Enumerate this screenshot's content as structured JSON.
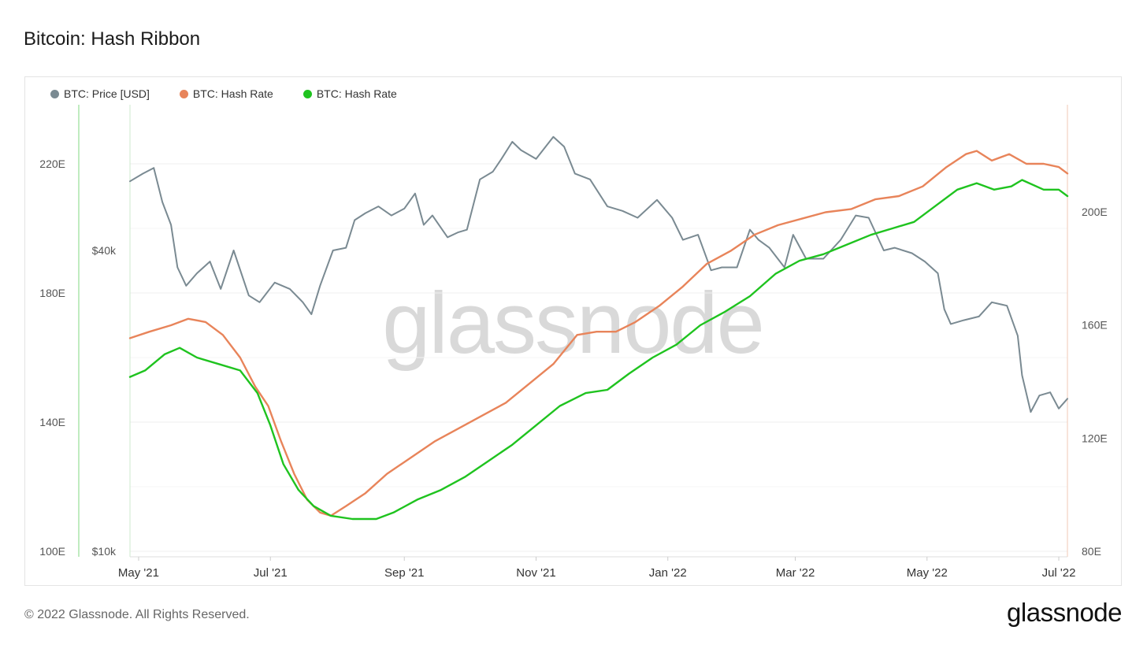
{
  "page": {
    "title": "Bitcoin: Hash Ribbon",
    "footer": "© 2022 Glassnode. All Rights Reserved.",
    "brand": "glassnode",
    "watermark": "glassnode"
  },
  "legend": [
    {
      "label": "BTC: Price [USD]",
      "color": "#7a8a92"
    },
    {
      "label": "BTC: Hash Rate",
      "color": "#e8845a"
    },
    {
      "label": "BTC: Hash Rate",
      "color": "#1fc31f"
    }
  ],
  "chart_data": {
    "type": "line",
    "title": "Bitcoin: Hash Ribbon",
    "x_tick_labels": [
      "May '21",
      "Jul '21",
      "Sep '21",
      "Nov '21",
      "Jan '22",
      "Mar '22",
      "May '22",
      "Jul '22"
    ],
    "x_tick_dates": [
      "2021-05-01",
      "2021-07-01",
      "2021-09-01",
      "2021-11-01",
      "2022-01-01",
      "2022-03-01",
      "2022-05-01",
      "2022-07-01"
    ],
    "xlim": [
      "2021-04-27",
      "2022-07-05"
    ],
    "y_left_hashrate": {
      "ticks": [
        "100E",
        "140E",
        "180E",
        "220E"
      ],
      "tick_values": [
        100,
        140,
        180,
        220
      ],
      "range": [
        100,
        220
      ]
    },
    "y_price": {
      "ticks": [
        "$10k",
        "$40k"
      ],
      "tick_values": [
        10000,
        40000
      ],
      "scale": "log",
      "range": [
        10000,
        72000
      ]
    },
    "y_right_hashrate": {
      "ticks": [
        "80E",
        "120E",
        "160E",
        "200E"
      ],
      "tick_values": [
        80,
        120,
        160,
        200
      ],
      "range": [
        80,
        240
      ]
    },
    "series": [
      {
        "name": "BTC: Price [USD]",
        "color": "#7a8a92",
        "axis": "price",
        "points": [
          [
            "2021-04-27",
            55000
          ],
          [
            "2021-05-03",
            57000
          ],
          [
            "2021-05-08",
            58500
          ],
          [
            "2021-05-12",
            50000
          ],
          [
            "2021-05-16",
            45000
          ],
          [
            "2021-05-19",
            37000
          ],
          [
            "2021-05-23",
            34000
          ],
          [
            "2021-05-28",
            36000
          ],
          [
            "2021-06-03",
            38000
          ],
          [
            "2021-06-08",
            33500
          ],
          [
            "2021-06-14",
            40000
          ],
          [
            "2021-06-21",
            32500
          ],
          [
            "2021-06-26",
            31500
          ],
          [
            "2021-07-03",
            34500
          ],
          [
            "2021-07-10",
            33500
          ],
          [
            "2021-07-16",
            31500
          ],
          [
            "2021-07-20",
            29800
          ],
          [
            "2021-07-24",
            34000
          ],
          [
            "2021-07-30",
            40000
          ],
          [
            "2021-08-05",
            40500
          ],
          [
            "2021-08-09",
            46000
          ],
          [
            "2021-08-14",
            47500
          ],
          [
            "2021-08-20",
            49000
          ],
          [
            "2021-08-26",
            47000
          ],
          [
            "2021-09-01",
            48500
          ],
          [
            "2021-09-06",
            52000
          ],
          [
            "2021-09-10",
            45000
          ],
          [
            "2021-09-14",
            47000
          ],
          [
            "2021-09-21",
            42500
          ],
          [
            "2021-09-26",
            43500
          ],
          [
            "2021-09-30",
            44000
          ],
          [
            "2021-10-06",
            55500
          ],
          [
            "2021-10-12",
            57500
          ],
          [
            "2021-10-16",
            61000
          ],
          [
            "2021-10-21",
            66000
          ],
          [
            "2021-10-25",
            63500
          ],
          [
            "2021-11-01",
            61000
          ],
          [
            "2021-11-09",
            67500
          ],
          [
            "2021-11-14",
            64500
          ],
          [
            "2021-11-19",
            57000
          ],
          [
            "2021-11-26",
            55500
          ],
          [
            "2021-12-04",
            49000
          ],
          [
            "2021-12-11",
            48000
          ],
          [
            "2021-12-18",
            46500
          ],
          [
            "2021-12-27",
            50500
          ],
          [
            "2022-01-03",
            46500
          ],
          [
            "2022-01-08",
            42000
          ],
          [
            "2022-01-15",
            43000
          ],
          [
            "2022-01-21",
            36500
          ],
          [
            "2022-01-26",
            37000
          ],
          [
            "2022-02-02",
            37000
          ],
          [
            "2022-02-08",
            44000
          ],
          [
            "2022-02-12",
            42000
          ],
          [
            "2022-02-17",
            40500
          ],
          [
            "2022-02-24",
            37000
          ],
          [
            "2022-02-28",
            43000
          ],
          [
            "2022-03-06",
            38500
          ],
          [
            "2022-03-14",
            38500
          ],
          [
            "2022-03-22",
            42000
          ],
          [
            "2022-03-29",
            47000
          ],
          [
            "2022-04-04",
            46500
          ],
          [
            "2022-04-11",
            40000
          ],
          [
            "2022-04-16",
            40500
          ],
          [
            "2022-04-24",
            39500
          ],
          [
            "2022-04-30",
            38000
          ],
          [
            "2022-05-06",
            36000
          ],
          [
            "2022-05-09",
            30500
          ],
          [
            "2022-05-12",
            28500
          ],
          [
            "2022-05-18",
            29000
          ],
          [
            "2022-05-25",
            29500
          ],
          [
            "2022-05-31",
            31500
          ],
          [
            "2022-06-07",
            31000
          ],
          [
            "2022-06-12",
            27000
          ],
          [
            "2022-06-14",
            22500
          ],
          [
            "2022-06-18",
            19000
          ],
          [
            "2022-06-22",
            20500
          ],
          [
            "2022-06-27",
            20800
          ],
          [
            "2022-07-01",
            19300
          ],
          [
            "2022-07-05",
            20200
          ]
        ]
      },
      {
        "name": "BTC: Hash Rate",
        "color": "#e8845a",
        "axis": "hashrate_left",
        "points": [
          [
            "2021-04-27",
            166
          ],
          [
            "2021-05-06",
            168
          ],
          [
            "2021-05-16",
            170
          ],
          [
            "2021-05-24",
            172
          ],
          [
            "2021-06-01",
            171
          ],
          [
            "2021-06-09",
            167
          ],
          [
            "2021-06-17",
            160
          ],
          [
            "2021-06-24",
            151
          ],
          [
            "2021-06-30",
            145
          ],
          [
            "2021-07-06",
            134
          ],
          [
            "2021-07-12",
            124
          ],
          [
            "2021-07-18",
            116
          ],
          [
            "2021-07-24",
            112
          ],
          [
            "2021-07-29",
            111
          ],
          [
            "2021-08-05",
            114
          ],
          [
            "2021-08-14",
            118
          ],
          [
            "2021-08-24",
            124
          ],
          [
            "2021-09-04",
            129
          ],
          [
            "2021-09-15",
            134
          ],
          [
            "2021-09-26",
            138
          ],
          [
            "2021-10-07",
            142
          ],
          [
            "2021-10-18",
            146
          ],
          [
            "2021-10-29",
            152
          ],
          [
            "2021-11-09",
            158
          ],
          [
            "2021-11-20",
            167
          ],
          [
            "2021-11-29",
            168
          ],
          [
            "2021-12-08",
            168
          ],
          [
            "2021-12-17",
            171
          ],
          [
            "2021-12-28",
            176
          ],
          [
            "2022-01-08",
            182
          ],
          [
            "2022-01-19",
            189
          ],
          [
            "2022-01-30",
            193
          ],
          [
            "2022-02-10",
            198
          ],
          [
            "2022-02-21",
            201
          ],
          [
            "2022-03-04",
            203
          ],
          [
            "2022-03-15",
            205
          ],
          [
            "2022-03-27",
            206
          ],
          [
            "2022-04-07",
            209
          ],
          [
            "2022-04-18",
            210
          ],
          [
            "2022-04-29",
            213
          ],
          [
            "2022-05-10",
            219
          ],
          [
            "2022-05-19",
            223
          ],
          [
            "2022-05-24",
            224
          ],
          [
            "2022-05-31",
            221
          ],
          [
            "2022-06-08",
            223
          ],
          [
            "2022-06-16",
            220
          ],
          [
            "2022-06-24",
            220
          ],
          [
            "2022-07-01",
            219
          ],
          [
            "2022-07-05",
            217
          ]
        ]
      },
      {
        "name": "BTC: Hash Rate",
        "color": "#1fc31f",
        "axis": "hashrate_left",
        "points": [
          [
            "2021-04-27",
            154
          ],
          [
            "2021-05-04",
            156
          ],
          [
            "2021-05-13",
            161
          ],
          [
            "2021-05-20",
            163
          ],
          [
            "2021-05-28",
            160
          ],
          [
            "2021-06-07",
            158
          ],
          [
            "2021-06-17",
            156
          ],
          [
            "2021-06-25",
            149
          ],
          [
            "2021-07-01",
            139
          ],
          [
            "2021-07-07",
            127
          ],
          [
            "2021-07-14",
            119
          ],
          [
            "2021-07-21",
            114
          ],
          [
            "2021-07-29",
            111
          ],
          [
            "2021-08-08",
            110
          ],
          [
            "2021-08-19",
            110
          ],
          [
            "2021-08-27",
            112
          ],
          [
            "2021-09-07",
            116
          ],
          [
            "2021-09-18",
            119
          ],
          [
            "2021-09-29",
            123
          ],
          [
            "2021-10-10",
            128
          ],
          [
            "2021-10-21",
            133
          ],
          [
            "2021-11-01",
            139
          ],
          [
            "2021-11-12",
            145
          ],
          [
            "2021-11-24",
            149
          ],
          [
            "2021-12-04",
            150
          ],
          [
            "2021-12-14",
            155
          ],
          [
            "2021-12-25",
            160
          ],
          [
            "2022-01-05",
            164
          ],
          [
            "2022-01-16",
            170
          ],
          [
            "2022-01-27",
            174
          ],
          [
            "2022-02-08",
            179
          ],
          [
            "2022-02-20",
            186
          ],
          [
            "2022-03-03",
            190
          ],
          [
            "2022-03-14",
            192
          ],
          [
            "2022-03-25",
            195
          ],
          [
            "2022-04-05",
            198
          ],
          [
            "2022-04-15",
            200
          ],
          [
            "2022-04-25",
            202
          ],
          [
            "2022-05-05",
            207
          ],
          [
            "2022-05-15",
            212
          ],
          [
            "2022-05-24",
            214
          ],
          [
            "2022-06-01",
            212
          ],
          [
            "2022-06-09",
            213
          ],
          [
            "2022-06-14",
            215
          ],
          [
            "2022-06-24",
            212
          ],
          [
            "2022-07-01",
            212
          ],
          [
            "2022-07-05",
            210
          ]
        ]
      }
    ],
    "grid": true,
    "legend_position": "top-left"
  }
}
